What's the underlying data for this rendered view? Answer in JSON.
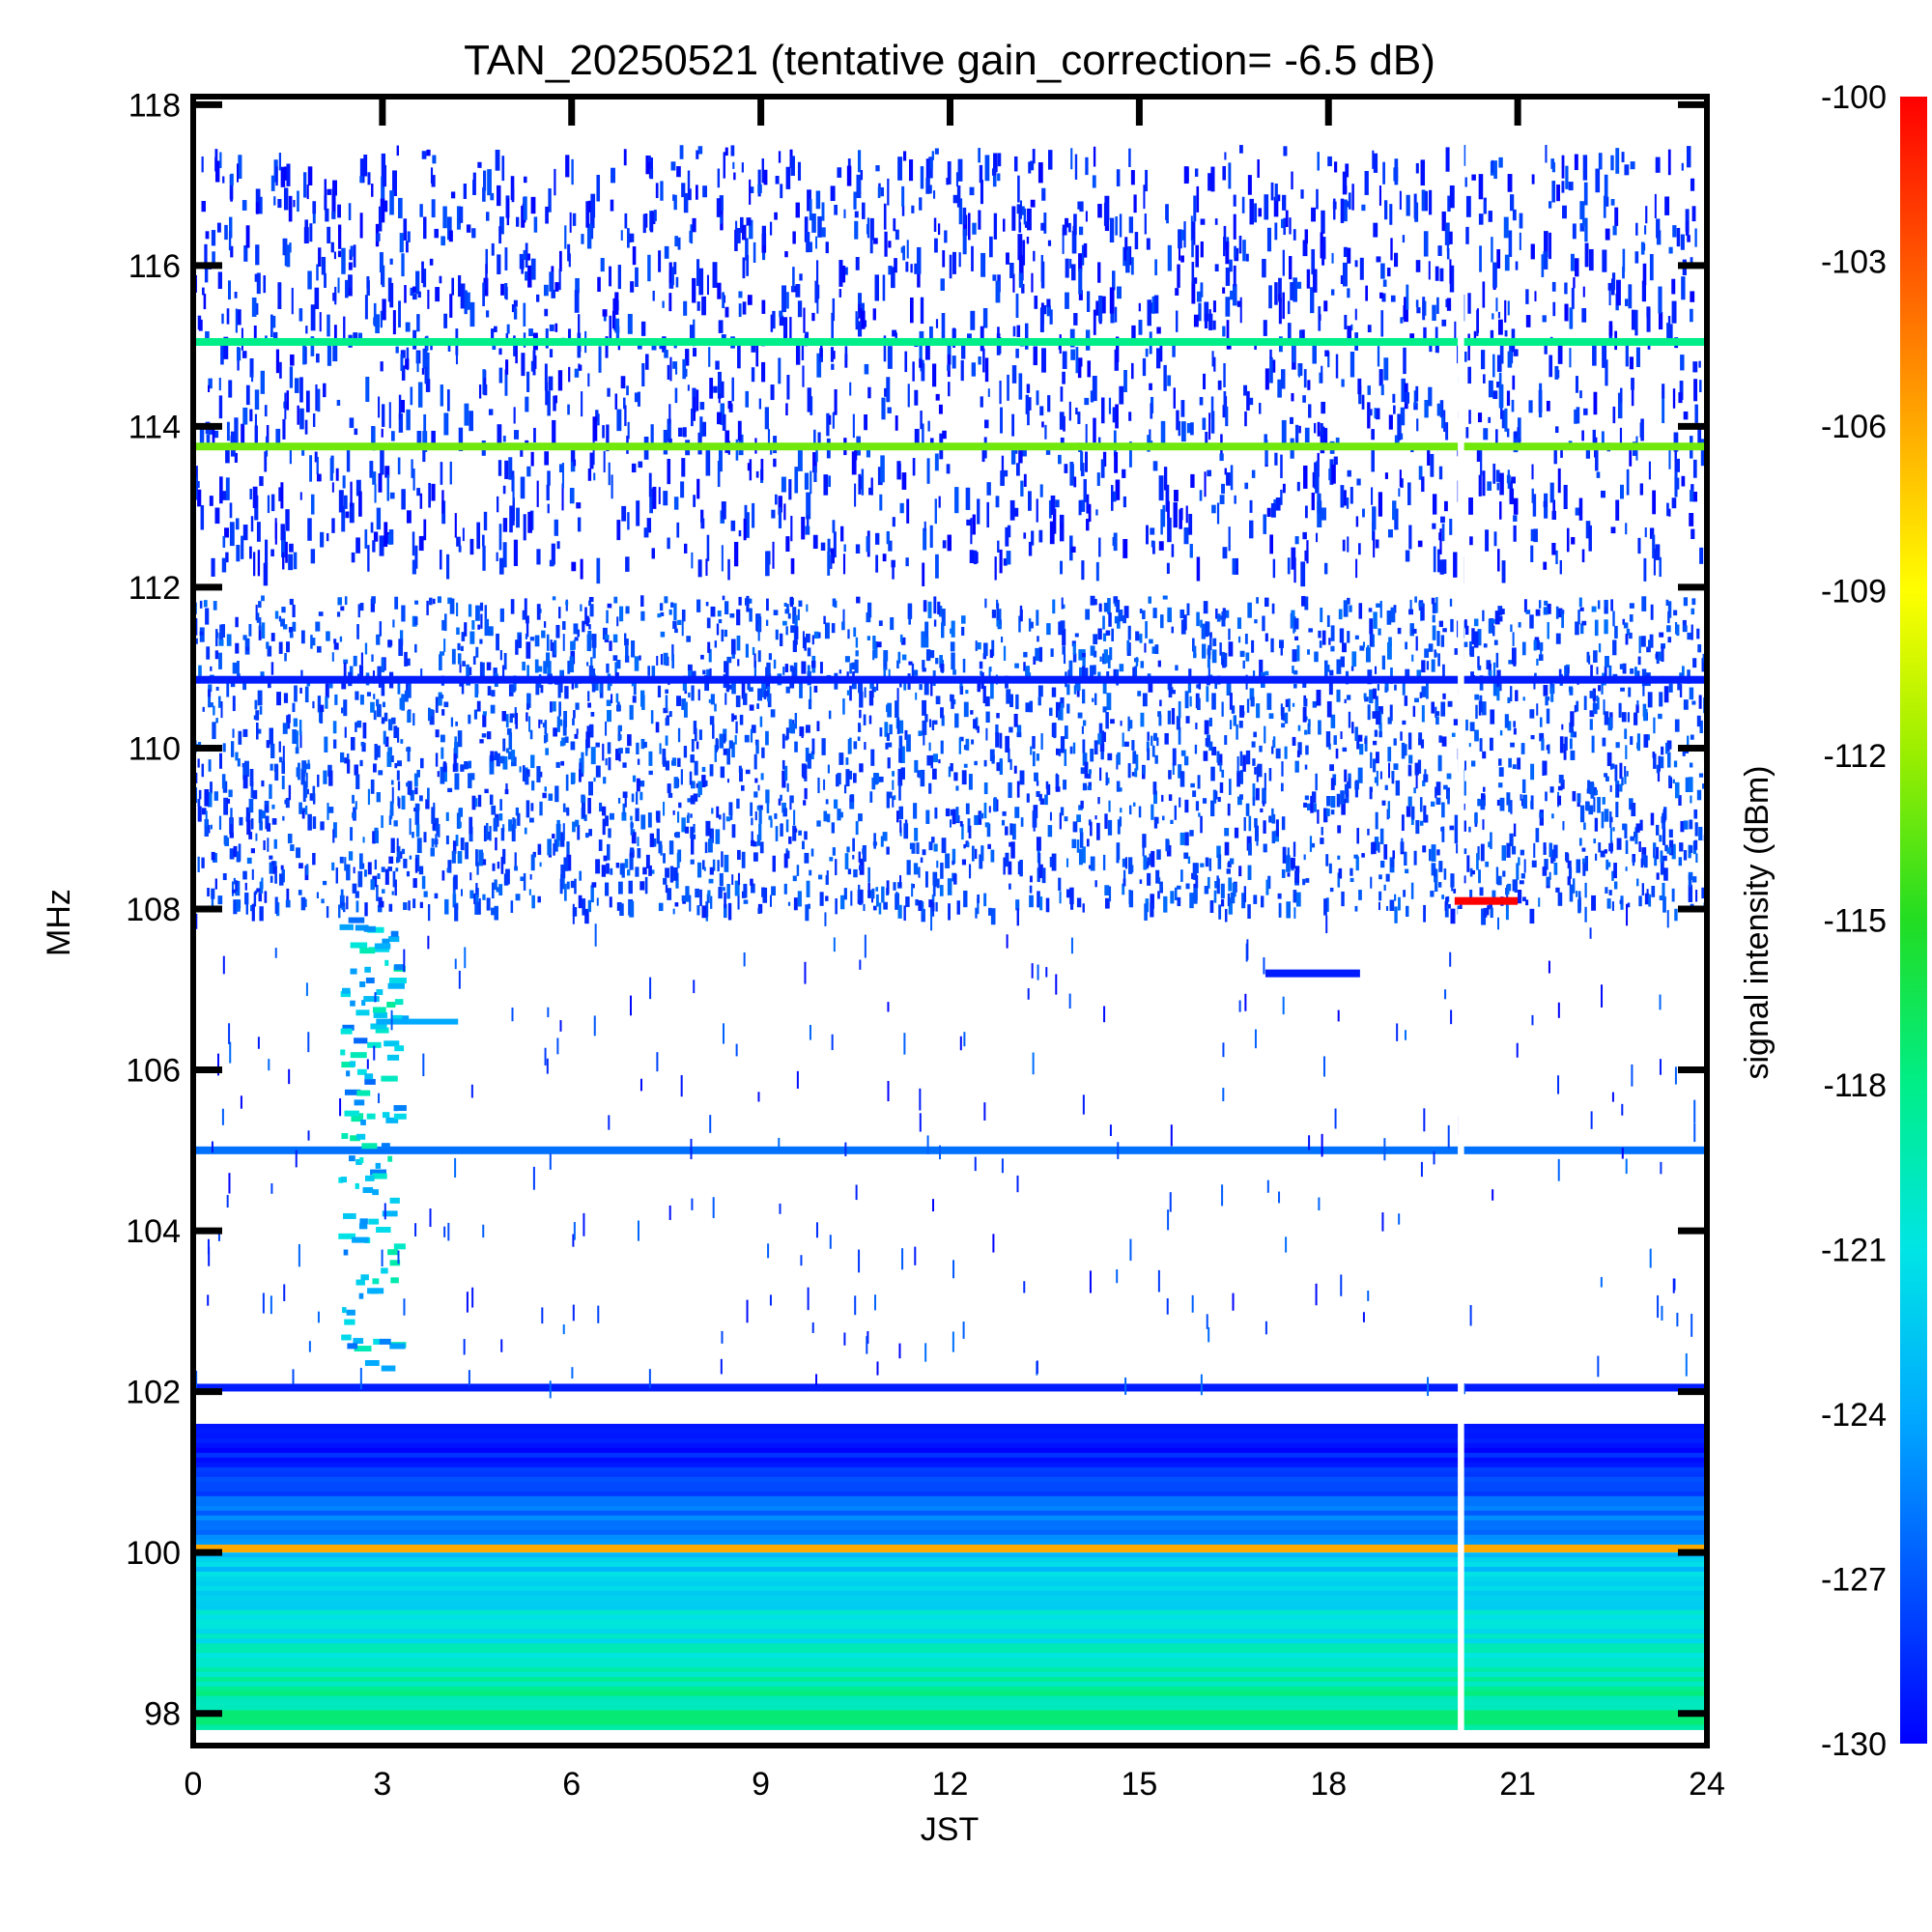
{
  "chart_data": {
    "type": "heatmap",
    "title": "TAN_20250521 (tentative gain_correction= -6.5 dB)",
    "xlabel": "JST",
    "ylabel": "MHz",
    "colorbar_label": "signal intensity (dBm)",
    "xlim": [
      0,
      24
    ],
    "ylim": [
      97.6,
      118.1
    ],
    "xticks": [
      "0",
      "3",
      "6",
      "9",
      "12",
      "15",
      "18",
      "21",
      "24"
    ],
    "yticks": [
      "98",
      "100",
      "102",
      "104",
      "106",
      "108",
      "110",
      "112",
      "114",
      "116",
      "118"
    ],
    "colorbar_range": [
      -130,
      -100
    ],
    "colorbar_ticks": [
      "-100",
      "-103",
      "-106",
      "-109",
      "-112",
      "-115",
      "-118",
      "-121",
      "-124",
      "-127",
      "-130"
    ],
    "colormap": [
      "#0000ff",
      "#0055ff",
      "#00aaff",
      "#00e5e5",
      "#00ee88",
      "#22dd22",
      "#99ee00",
      "#ffff00",
      "#ffaa00",
      "#ff5500",
      "#ff0000"
    ],
    "data_gap_hours": [
      20.05,
      20.15
    ],
    "persistent_lines": [
      {
        "freq_mhz": 115.05,
        "level_dbm": -118
      },
      {
        "freq_mhz": 113.75,
        "level_dbm": -113
      },
      {
        "freq_mhz": 110.85,
        "level_dbm": -129
      },
      {
        "freq_mhz": 105.0,
        "level_dbm": -126
      },
      {
        "freq_mhz": 102.05,
        "level_dbm": -129
      },
      {
        "freq_mhz": 100.05,
        "level_dbm": -106
      }
    ],
    "bands": [
      {
        "from_mhz": 108.0,
        "to_mhz": 111.9,
        "description": "dense noise band",
        "level_dbm": -129
      },
      {
        "from_mhz": 112.3,
        "to_mhz": 117.5,
        "description": "sparse noise band",
        "level_dbm": -130
      },
      {
        "from_mhz": 100.1,
        "to_mhz": 101.6,
        "description": "continuous blue band",
        "level_dbm": -127
      },
      {
        "from_mhz": 97.8,
        "to_mhz": 100.0,
        "description": "continuous green band",
        "level_dbm": -120
      }
    ],
    "transient_events": [
      {
        "start_jst": 20.0,
        "end_jst": 21.0,
        "freq_mhz": 108.1,
        "level_dbm": -100
      },
      {
        "start_jst": 17.0,
        "end_jst": 18.5,
        "freq_mhz": 107.2,
        "level_dbm": -129
      },
      {
        "start_jst": 2.3,
        "end_jst": 4.2,
        "freq_mhz": 106.6,
        "level_dbm": -124
      }
    ]
  }
}
